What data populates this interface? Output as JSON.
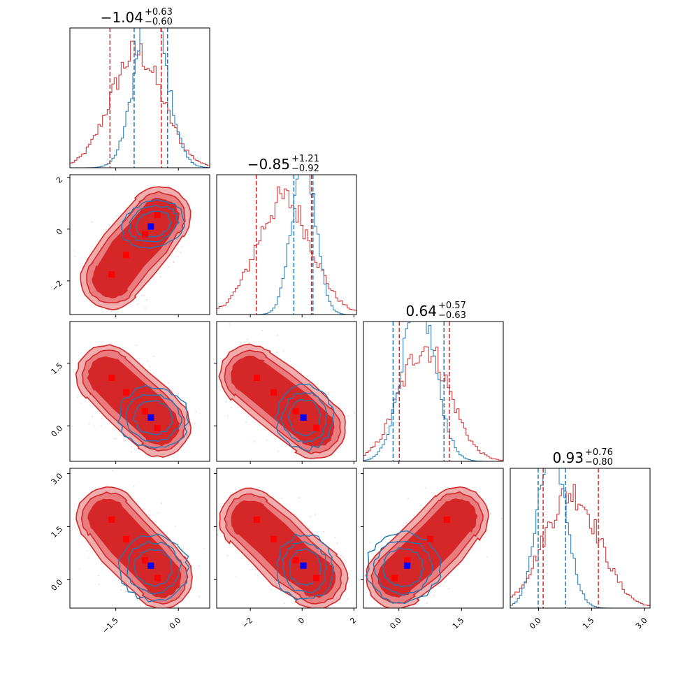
{
  "chart_data": {
    "type": "corner",
    "colors": {
      "red": "#d62728",
      "red_mid": "#e97c7e",
      "red_light": "#f1aeaf",
      "blue": "#1f77b4",
      "marker_red": "#ff0000",
      "marker_blue": "#0000ff"
    },
    "parameters": [
      {
        "index": 0,
        "title": {
          "median": "−1.04",
          "plus": "+0.63",
          "minus": "−0.60"
        },
        "range": [
          -2.6,
          0.75
        ]
      },
      {
        "index": 1,
        "title": {
          "median": "−0.85",
          "plus": "+1.21",
          "minus": "−0.92"
        },
        "range": [
          -3.3,
          2.1
        ]
      },
      {
        "index": 2,
        "title": {
          "median": "0.64",
          "plus": "+0.57",
          "minus": "−0.63"
        },
        "range": [
          -0.85,
          2.5
        ]
      },
      {
        "index": 3,
        "title": {
          "median": "0.93",
          "plus": "+0.76",
          "minus": "−0.80"
        },
        "range": [
          -0.8,
          3.15
        ]
      }
    ],
    "ticks": {
      "p0": {
        "values": [
          -1.5,
          0.0
        ],
        "labels": [
          "−1.5",
          "0.0"
        ]
      },
      "p1": {
        "values": [
          -2,
          0,
          2
        ],
        "labels": [
          "−2",
          "0",
          "2"
        ]
      },
      "p2": {
        "values": [
          0.0,
          1.5
        ],
        "labels": [
          "0.0",
          "1.5"
        ]
      },
      "p3": {
        "values": [
          0.0,
          1.5,
          3.0
        ],
        "labels": [
          "0.0",
          "1.5",
          "3.0"
        ]
      }
    },
    "quantiles": {
      "red": [
        [
          -1.64,
          -0.41
        ],
        [
          -1.77,
          0.36
        ],
        [
          0.01,
          1.21
        ],
        [
          0.13,
          1.69
        ]
      ],
      "blue": [
        [
          -1.06,
          -0.26
        ],
        [
          -0.32,
          0.42
        ],
        [
          -0.14,
          1.08
        ],
        [
          -0.01,
          0.76
        ]
      ],
      "blue_median": [
        -1.06,
        -0.32,
        -0.14,
        -0.01
      ]
    },
    "hist1d": {
      "red": {
        "mean": [
          -1.0,
          -0.7,
          0.62,
          0.93
        ],
        "sd": [
          0.62,
          1.05,
          0.6,
          0.78
        ]
      },
      "blue": {
        "mean": [
          -0.66,
          0.05,
          0.47,
          0.38
        ],
        "sd": [
          0.38,
          0.45,
          0.4,
          0.4
        ]
      }
    },
    "blobs": {
      "p1_vs_p0": {
        "red": [
          [
            -1.6,
            -1.9
          ],
          [
            -1.2,
            -0.95
          ],
          [
            -0.8,
            -0.25
          ],
          [
            -0.45,
            0.45
          ]
        ],
        "blue": {
          "center": [
            -0.6,
            0.2
          ],
          "sd": [
            0.35,
            0.4
          ],
          "rho": 0.4
        }
      },
      "p2_vs_p0": {
        "red": [
          [
            -1.7,
            1.2
          ],
          [
            -1.2,
            0.75
          ],
          [
            -0.75,
            0.35
          ],
          [
            -0.45,
            0.0
          ]
        ],
        "blue": {
          "center": [
            -0.6,
            0.2
          ],
          "sd": [
            0.38,
            0.33
          ],
          "rho": -0.2
        }
      },
      "p2_vs_p1": {
        "red": [
          [
            -2.0,
            1.2
          ],
          [
            -1.1,
            0.8
          ],
          [
            -0.3,
            0.4
          ],
          [
            0.5,
            -0.05
          ]
        ],
        "blue": {
          "center": [
            0.1,
            0.2
          ],
          "sd": [
            0.5,
            0.35
          ],
          "rho": 0.0
        }
      },
      "p3_vs_p0": {
        "red": [
          [
            -1.7,
            1.75
          ],
          [
            -1.25,
            1.15
          ],
          [
            -0.75,
            0.55
          ],
          [
            -0.4,
            0.05
          ]
        ],
        "blue": {
          "center": [
            -0.6,
            0.35
          ],
          "sd": [
            0.38,
            0.42
          ],
          "rho": -0.2
        }
      },
      "p3_vs_p1": {
        "red": [
          [
            -2.0,
            1.7
          ],
          [
            -1.1,
            1.15
          ],
          [
            -0.3,
            0.55
          ],
          [
            0.55,
            0.05
          ]
        ],
        "blue": {
          "center": [
            0.1,
            0.35
          ],
          "sd": [
            0.5,
            0.42
          ],
          "rho": 0.0
        }
      },
      "p3_vs_p2": {
        "red": [
          [
            -0.05,
            0.05
          ],
          [
            0.45,
            0.6
          ],
          [
            0.95,
            1.2
          ],
          [
            1.4,
            1.75
          ]
        ],
        "blue": {
          "center": [
            0.1,
            0.35
          ],
          "sd": [
            0.4,
            0.45
          ],
          "rho": 0.3
        }
      }
    },
    "markers": {
      "p1_vs_p0": {
        "red": [
          [
            -1.6,
            -1.75
          ],
          [
            -1.25,
            -1.0
          ],
          [
            -0.8,
            -0.2
          ],
          [
            -0.5,
            0.55
          ]
        ],
        "blue": [
          -0.66,
          0.1
        ]
      },
      "p2_vs_p0": {
        "red": [
          [
            -1.6,
            1.15
          ],
          [
            -1.25,
            0.8
          ],
          [
            -0.8,
            0.35
          ],
          [
            -0.5,
            -0.05
          ]
        ],
        "blue": [
          -0.66,
          0.2
        ]
      },
      "p2_vs_p1": {
        "red": [
          [
            -1.75,
            1.15
          ],
          [
            -1.1,
            0.8
          ],
          [
            -0.25,
            0.35
          ],
          [
            0.55,
            -0.05
          ]
        ],
        "blue": [
          0.05,
          0.2
        ]
      },
      "p3_vs_p0": {
        "red": [
          [
            -1.6,
            1.7
          ],
          [
            -1.25,
            1.15
          ],
          [
            -0.8,
            0.55
          ],
          [
            -0.5,
            0.05
          ]
        ],
        "blue": [
          -0.66,
          0.4
        ]
      },
      "p3_vs_p1": {
        "red": [
          [
            -1.75,
            1.7
          ],
          [
            -1.1,
            1.15
          ],
          [
            -0.25,
            0.55
          ],
          [
            0.55,
            0.05
          ]
        ],
        "blue": [
          0.05,
          0.4
        ]
      },
      "p3_vs_p2": {
        "red": [
          [
            -0.1,
            0.05
          ],
          [
            0.2,
            0.55
          ],
          [
            0.75,
            1.15
          ],
          [
            1.15,
            1.7
          ]
        ],
        "blue": [
          0.2,
          0.4
        ]
      }
    }
  }
}
